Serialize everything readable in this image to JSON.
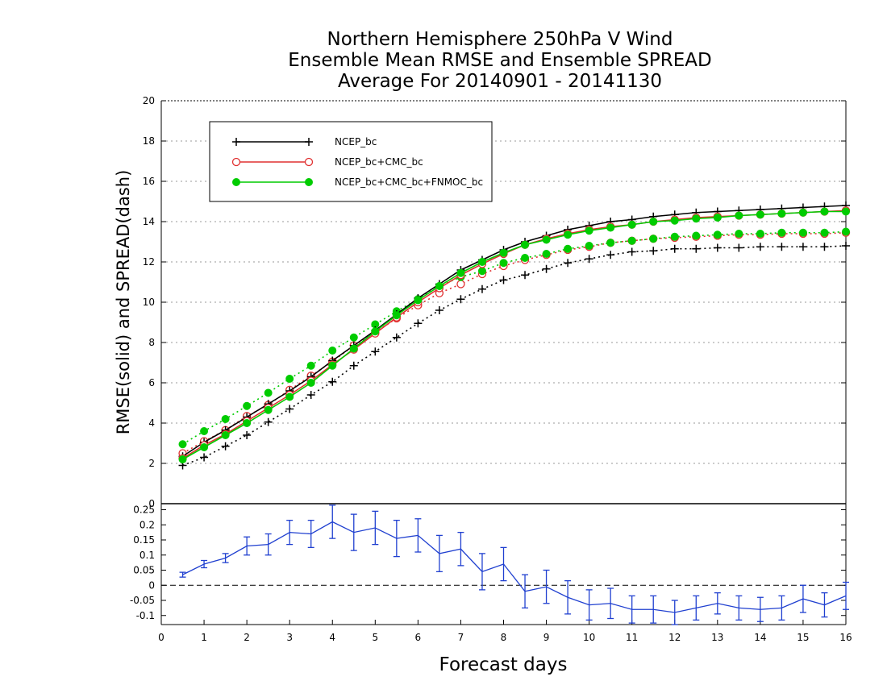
{
  "chart_data": [
    {
      "type": "line",
      "title": [
        "Northern Hemisphere 250hPa V Wind",
        "Ensemble Mean RMSE and Ensemble SPREAD",
        "Average For 20140901 - 20141130"
      ],
      "ylabel": "RMSE(solid) and SPREAD(dash)",
      "xlabel": "Forecast days",
      "xlim": [
        0,
        16
      ],
      "ylim": [
        0,
        20
      ],
      "yticks": [
        0,
        2,
        4,
        6,
        8,
        10,
        12,
        14,
        16,
        18,
        20
      ],
      "x": [
        0.5,
        1,
        1.5,
        2,
        2.5,
        3,
        3.5,
        4,
        4.5,
        5,
        5.5,
        6,
        6.5,
        7,
        7.5,
        8,
        8.5,
        9,
        9.5,
        10,
        10.5,
        11,
        11.5,
        12,
        12.5,
        13,
        13.5,
        14,
        14.5,
        15,
        15.5,
        16
      ],
      "series": [
        {
          "name": "NCEP_bc",
          "style": "solid",
          "color": "#000000",
          "marker": "plus",
          "values": [
            2.35,
            3.05,
            3.65,
            4.3,
            4.95,
            5.6,
            6.3,
            7.1,
            7.85,
            8.6,
            9.4,
            10.2,
            10.9,
            11.6,
            12.1,
            12.6,
            13.0,
            13.3,
            13.6,
            13.8,
            14.0,
            14.1,
            14.25,
            14.35,
            14.45,
            14.5,
            14.55,
            14.6,
            14.65,
            14.7,
            14.75,
            14.8
          ]
        },
        {
          "name": "NCEP_bc+CMC_bc",
          "style": "solid",
          "color": "#e03030",
          "marker": "circle",
          "values": [
            2.25,
            2.9,
            3.45,
            4.1,
            4.75,
            5.4,
            6.1,
            6.9,
            7.65,
            8.45,
            9.25,
            10.0,
            10.7,
            11.35,
            11.9,
            12.4,
            12.85,
            13.15,
            13.4,
            13.6,
            13.75,
            13.85,
            14.0,
            14.1,
            14.2,
            14.25,
            14.3,
            14.35,
            14.4,
            14.45,
            14.5,
            14.55
          ]
        },
        {
          "name": "NCEP_bc+CMC_bc+FNMOC_bc",
          "style": "solid",
          "color": "#00cc00",
          "marker": "dot",
          "values": [
            2.2,
            2.8,
            3.4,
            4.0,
            4.65,
            5.3,
            6.0,
            6.85,
            7.7,
            8.55,
            9.35,
            10.1,
            10.8,
            11.45,
            12.0,
            12.45,
            12.85,
            13.1,
            13.35,
            13.55,
            13.7,
            13.85,
            14.0,
            14.05,
            14.15,
            14.2,
            14.3,
            14.35,
            14.4,
            14.45,
            14.5,
            14.5
          ]
        },
        {
          "name": "",
          "style": "dotted",
          "color": "#000000",
          "marker": "plus",
          "values": [
            1.9,
            2.3,
            2.85,
            3.4,
            4.05,
            4.7,
            5.4,
            6.05,
            6.85,
            7.55,
            8.25,
            8.95,
            9.6,
            10.15,
            10.65,
            11.1,
            11.35,
            11.65,
            11.95,
            12.15,
            12.35,
            12.5,
            12.55,
            12.65,
            12.65,
            12.7,
            12.7,
            12.75,
            12.75,
            12.75,
            12.75,
            12.8
          ]
        },
        {
          "name": "",
          "style": "dotted",
          "color": "#e03030",
          "marker": "circle",
          "values": [
            2.5,
            3.1,
            3.65,
            4.35,
            4.9,
            5.65,
            6.35,
            7.05,
            7.85,
            8.5,
            9.2,
            9.85,
            10.45,
            10.9,
            11.4,
            11.8,
            12.1,
            12.35,
            12.6,
            12.75,
            12.95,
            13.05,
            13.15,
            13.2,
            13.25,
            13.3,
            13.35,
            13.35,
            13.4,
            13.4,
            13.4,
            13.45
          ]
        },
        {
          "name": "",
          "style": "dotted",
          "color": "#00cc00",
          "marker": "dot",
          "values": [
            2.95,
            3.6,
            4.2,
            4.85,
            5.5,
            6.2,
            6.85,
            7.6,
            8.25,
            8.9,
            9.55,
            10.15,
            10.8,
            11.25,
            11.55,
            11.95,
            12.2,
            12.4,
            12.65,
            12.8,
            12.95,
            13.05,
            13.15,
            13.25,
            13.3,
            13.35,
            13.4,
            13.4,
            13.45,
            13.45,
            13.45,
            13.5
          ]
        }
      ],
      "legend": "top-left",
      "grid": "horizontal dotted"
    },
    {
      "type": "line",
      "xlabel": "Forecast days",
      "xlim": [
        0,
        16
      ],
      "xticks": [
        0,
        1,
        2,
        3,
        4,
        5,
        6,
        7,
        8,
        9,
        10,
        11,
        12,
        13,
        14,
        15,
        16
      ],
      "ylim": [
        -0.13,
        0.27
      ],
      "yticks": [
        -0.1,
        -0.05,
        0,
        0.05,
        0.1,
        0.15,
        0.2,
        0.25
      ],
      "ytick_labels": [
        "-0.1",
        "-0.05",
        "0",
        "0.05",
        "0.1",
        "0.15",
        "0.2",
        "0.25"
      ],
      "reference_line": 0,
      "x": [
        0.5,
        1,
        1.5,
        2,
        2.5,
        3,
        3.5,
        4,
        4.5,
        5,
        5.5,
        6,
        6.5,
        7,
        7.5,
        8,
        8.5,
        9,
        9.5,
        10,
        10.5,
        11,
        11.5,
        12,
        12.5,
        13,
        13.5,
        14,
        14.5,
        15,
        15.5,
        16
      ],
      "series": [
        {
          "name": "",
          "color": "#2040d0",
          "error_bars": true,
          "values": [
            0.035,
            0.07,
            0.09,
            0.13,
            0.135,
            0.175,
            0.17,
            0.21,
            0.175,
            0.19,
            0.155,
            0.165,
            0.105,
            0.12,
            0.045,
            0.07,
            -0.02,
            -0.005,
            -0.04,
            -0.065,
            -0.06,
            -0.08,
            -0.08,
            -0.09,
            -0.075,
            -0.06,
            -0.075,
            -0.08,
            -0.075,
            -0.045,
            -0.065,
            -0.035
          ],
          "errors": [
            0.008,
            0.012,
            0.015,
            0.03,
            0.035,
            0.04,
            0.045,
            0.055,
            0.06,
            0.055,
            0.06,
            0.055,
            0.06,
            0.055,
            0.06,
            0.055,
            0.055,
            0.055,
            0.055,
            0.05,
            0.05,
            0.045,
            0.045,
            0.04,
            0.04,
            0.035,
            0.04,
            0.04,
            0.04,
            0.045,
            0.04,
            0.045
          ]
        }
      ]
    }
  ],
  "colors": {
    "rmse_black": "#000000",
    "red": "#e03030",
    "green": "#00cc00",
    "diff_blue": "#2040d0"
  }
}
